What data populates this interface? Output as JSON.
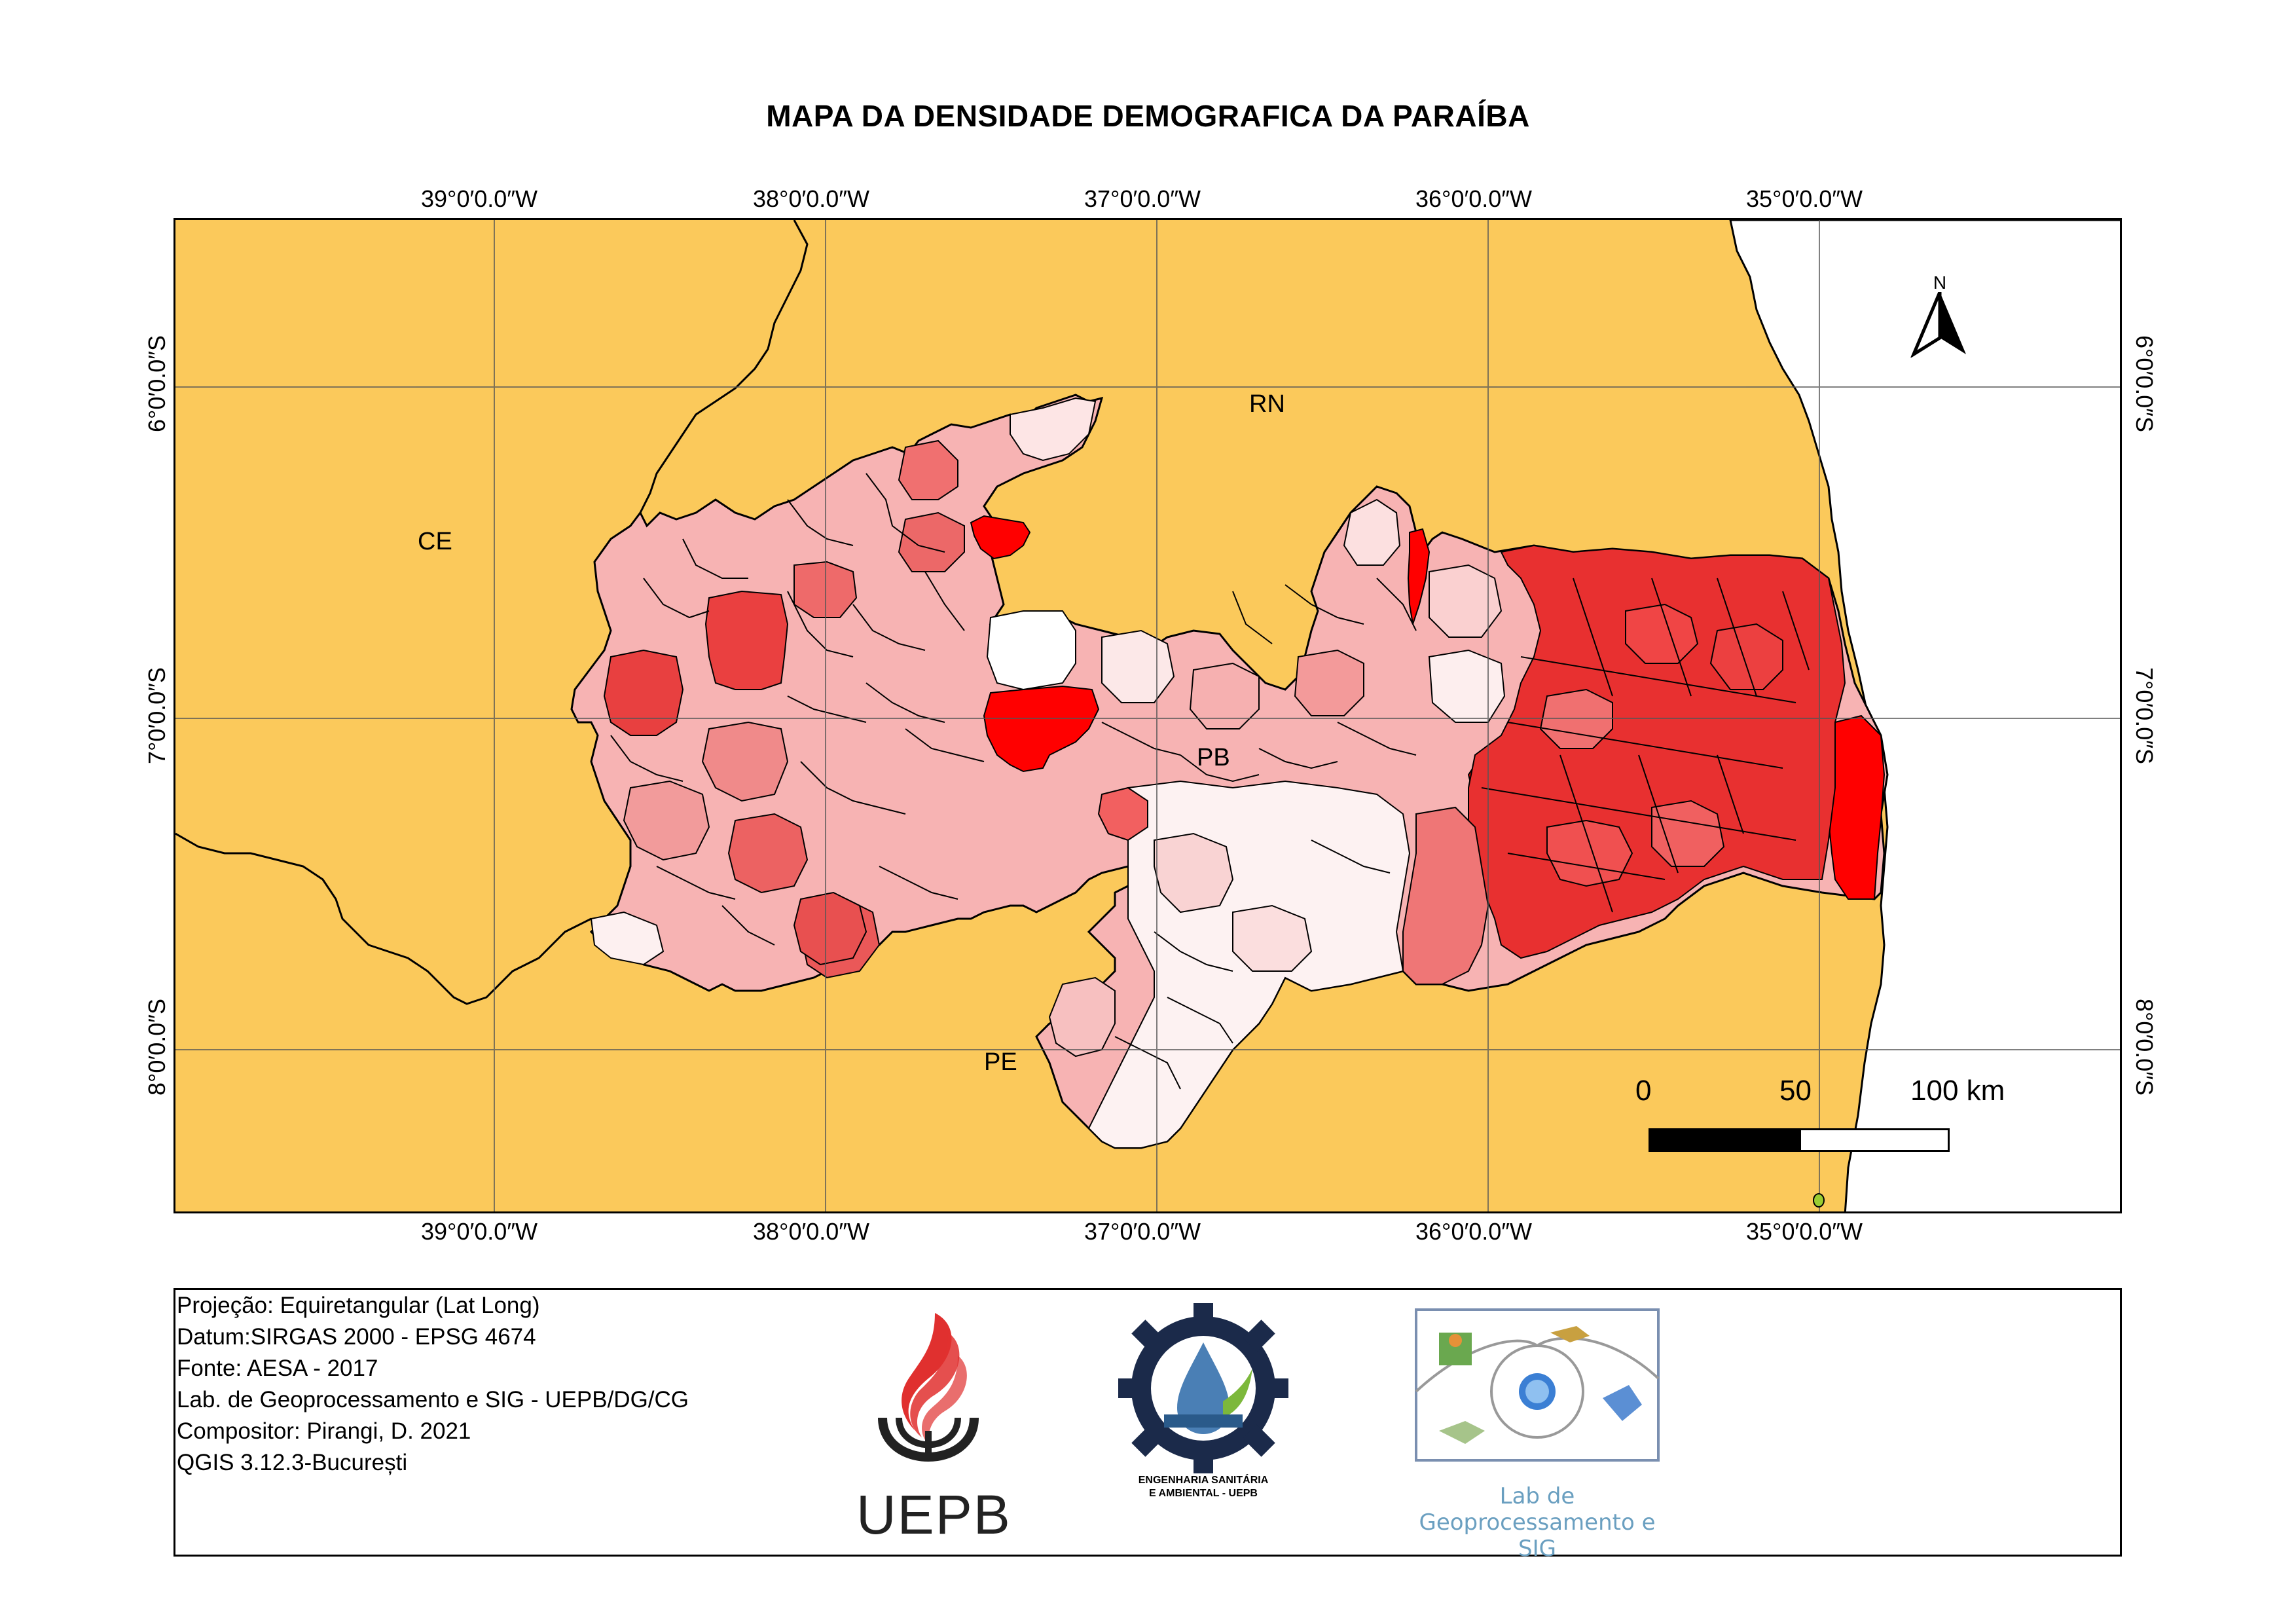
{
  "map": {
    "title": "MAPA DA DENSIDADE DEMOGRAFICA DA PARAÍBA",
    "longitude_labels": [
      "39°0′0.0″W",
      "38°0′0.0″W",
      "37°0′0.0″W",
      "36°0′0.0″W",
      "35°0′0.0″W"
    ],
    "latitude_labels": [
      "6°0′0.0″S",
      "7°0′0.0″S",
      "8°0′0.0″S"
    ],
    "region_labels": {
      "ce": "CE",
      "rn": "RN",
      "pb": "PB",
      "pe": "PE"
    },
    "north_arrow_label": "N",
    "scale_bar": {
      "labels": [
        "0",
        "50",
        "100 km"
      ]
    },
    "colors": {
      "neighbor_states": "#fbc95b",
      "ocean": "#ffffff",
      "low_density": "#fdf0f0",
      "medium_low_density": "#f7b3b3",
      "medium_density": "#f08080",
      "high_density": "#e84040",
      "highest_density": "#ff0000",
      "boundary": "#000000"
    }
  },
  "legend": {
    "lines": [
      "Projeção: Equiretangular (Lat Long)",
      "Datum:SIRGAS 2000 - EPSG 4674",
      "Fonte: AESA - 2017",
      "Lab. de Geoprocessamento e SIG - UEPB/DG/CG",
      "Compositor: Pirangi, D. 2021",
      "QGIS 3.12.3-București"
    ],
    "logos": {
      "uepb": "UEPB",
      "engenharia_line1": "ENGENHARIA SANITÁRIA",
      "engenharia_line2": "E AMBIENTAL - UEPB",
      "lab": "Lab de Geoprocessamento e SIG"
    }
  }
}
